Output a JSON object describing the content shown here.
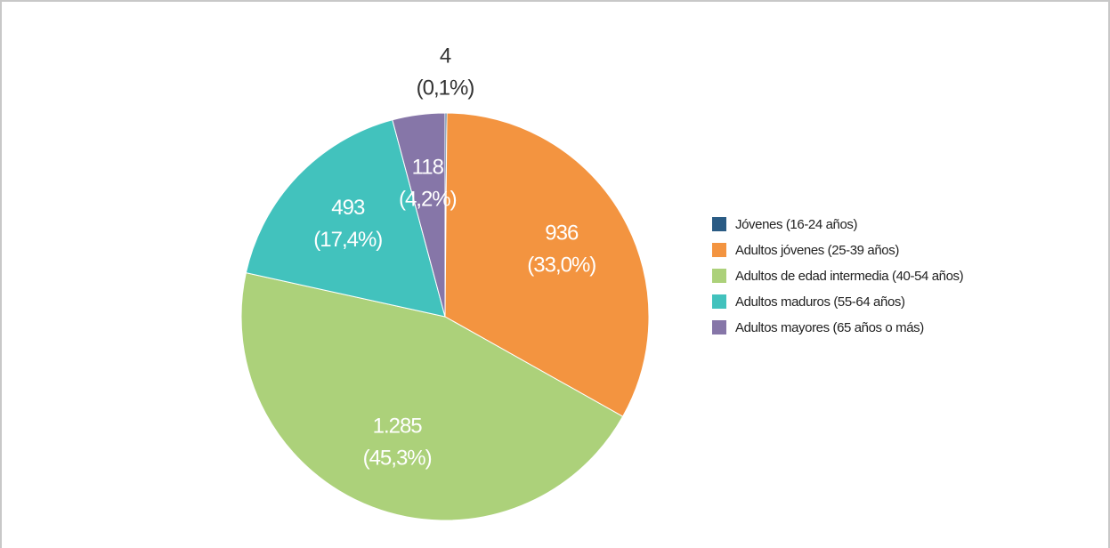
{
  "chart_data": {
    "type": "pie",
    "categories": [
      "Jóvenes (16-24 años)",
      "Adultos jóvenes (25-39 años)",
      "Adultos de edad intermedia (40-54 años)",
      "Adultos maduros (55-64 años)",
      "Adultos mayores (65 años o más)"
    ],
    "values": [
      4,
      936,
      1285,
      493,
      118
    ],
    "value_labels": [
      "4",
      "936",
      "1.285",
      "493",
      "118"
    ],
    "percentages": [
      0.1,
      33.0,
      45.3,
      17.4,
      4.2
    ],
    "percentage_labels": [
      "(0,1%)",
      "(33,0%)",
      "(45,3%)",
      "(17,4%)",
      "(4,2%)"
    ],
    "colors": [
      "#2a5b84",
      "#f39440",
      "#acd17a",
      "#42c2bd",
      "#8676a8"
    ],
    "legend": "right"
  }
}
